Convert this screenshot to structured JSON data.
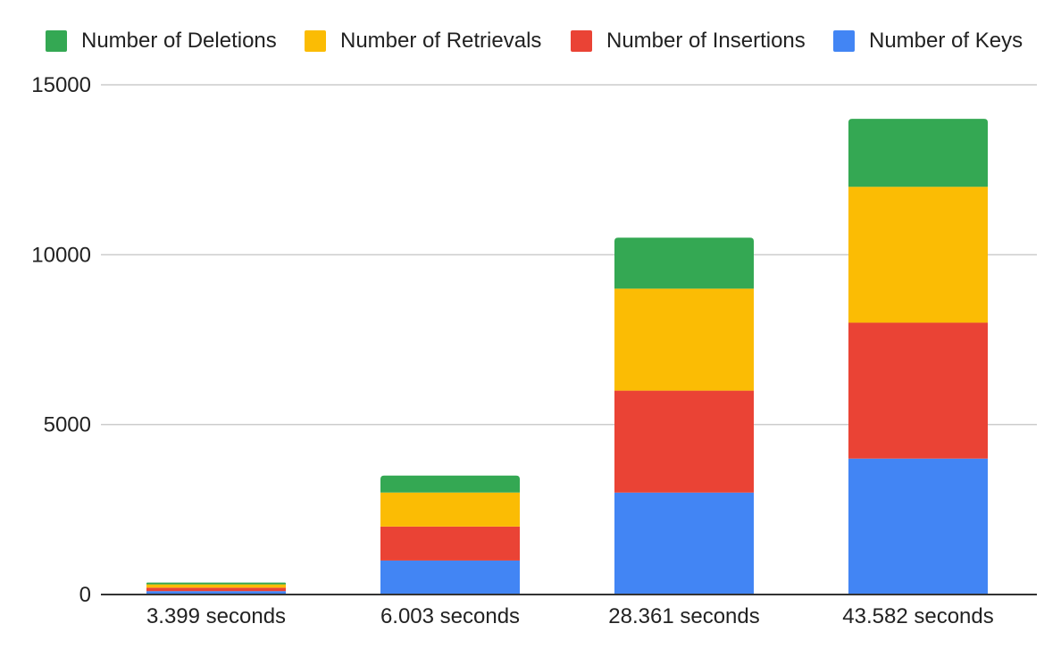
{
  "chart_data": {
    "type": "bar",
    "stacked": true,
    "categories": [
      "3.399 seconds",
      "6.003 seconds",
      "28.361 seconds",
      "43.582 seconds"
    ],
    "series": [
      {
        "name": "Number of Keys",
        "color": "#4285f4",
        "values": [
          100,
          1000,
          3000,
          4000
        ]
      },
      {
        "name": "Number of Insertions",
        "color": "#ea4335",
        "values": [
          100,
          1000,
          3000,
          4000
        ]
      },
      {
        "name": "Number of Retrievals",
        "color": "#fbbc04",
        "values": [
          100,
          1000,
          3000,
          4000
        ]
      },
      {
        "name": "Number of Deletions",
        "color": "#34a853",
        "values": [
          50,
          500,
          1500,
          2000
        ]
      }
    ],
    "legend_order": [
      "Number of Deletions",
      "Number of Retrievals",
      "Number of Insertions",
      "Number of Keys"
    ],
    "legend_position": "top",
    "ylim": [
      0,
      15000
    ],
    "yticks": [
      "0",
      "5000",
      "10000",
      "15000"
    ],
    "grid": true,
    "title": "",
    "xlabel": "",
    "ylabel": ""
  }
}
